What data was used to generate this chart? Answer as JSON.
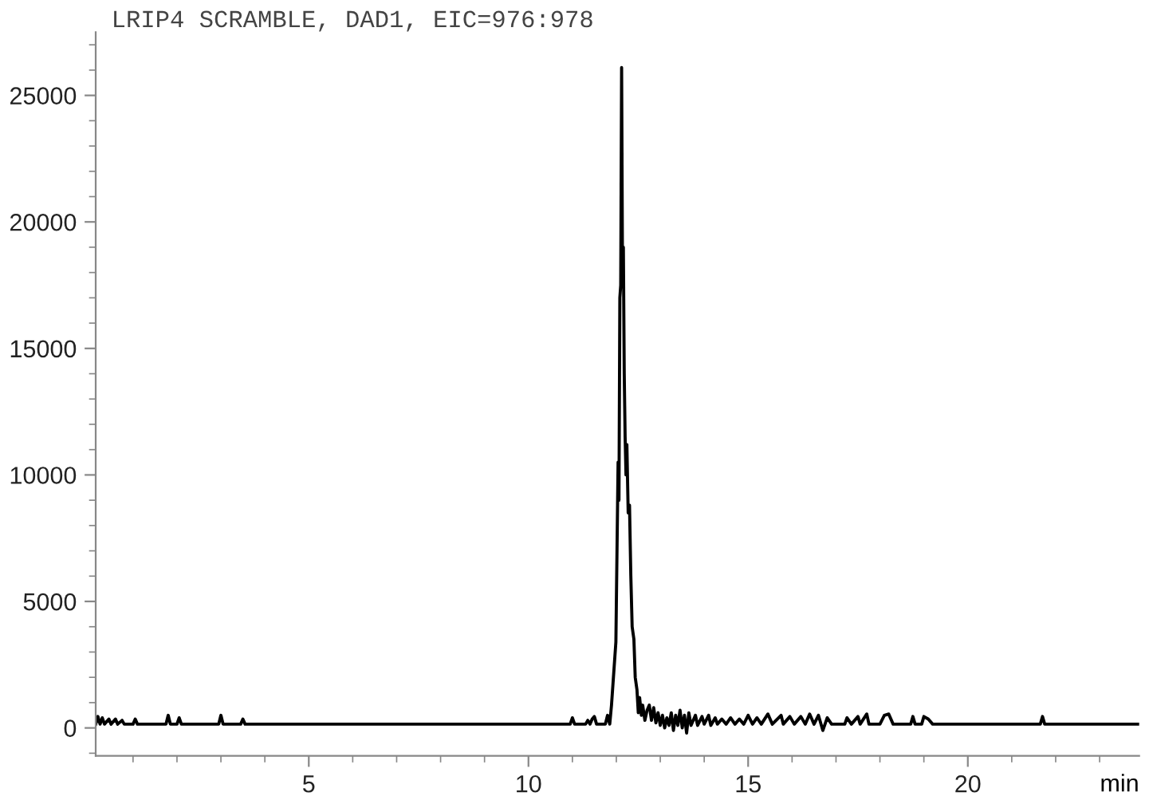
{
  "chart_data": {
    "type": "line",
    "title": "LRIP4 SCRAMBLE, DAD1, EIC=976:978",
    "xlabel": "min",
    "x": [
      0.15,
      0.2,
      0.25,
      0.3,
      0.35,
      0.45,
      0.5,
      0.6,
      0.65,
      0.75,
      0.8,
      1.0,
      1.05,
      1.1,
      1.75,
      1.8,
      1.85,
      2.0,
      2.05,
      2.1,
      2.95,
      3.0,
      3.05,
      3.45,
      3.5,
      3.55,
      10.95,
      11.0,
      11.05,
      11.3,
      11.35,
      11.4,
      11.45,
      11.5,
      11.55,
      11.75,
      11.8,
      11.85,
      11.89,
      11.99,
      12.04,
      12.06,
      12.08,
      12.1,
      12.12,
      12.14,
      12.16,
      12.18,
      12.2,
      12.22,
      12.24,
      12.27,
      12.3,
      12.33,
      12.36,
      12.4,
      12.43,
      12.47,
      12.5,
      12.53,
      12.57,
      12.6,
      12.65,
      12.7,
      12.75,
      12.8,
      12.85,
      12.9,
      12.95,
      13.0,
      13.05,
      13.1,
      13.15,
      13.2,
      13.25,
      13.3,
      13.35,
      13.4,
      13.45,
      13.5,
      13.55,
      13.6,
      13.65,
      13.7,
      13.8,
      13.85,
      13.95,
      14.0,
      14.1,
      14.15,
      14.25,
      14.3,
      14.4,
      14.5,
      14.6,
      14.7,
      14.8,
      14.9,
      15.0,
      15.1,
      15.2,
      15.3,
      15.45,
      15.55,
      15.75,
      15.8,
      15.95,
      16.05,
      16.2,
      16.3,
      16.4,
      16.5,
      16.6,
      16.7,
      16.8,
      16.9,
      17.2,
      17.25,
      17.35,
      17.5,
      17.55,
      17.7,
      17.75,
      18.0,
      18.1,
      18.2,
      18.3,
      18.7,
      18.75,
      18.8,
      18.95,
      19.0,
      19.1,
      19.2,
      21.65,
      21.7,
      21.75,
      23.9
    ],
    "series": [
      {
        "color": "#000000",
        "values": [
          150,
          450,
          150,
          400,
          150,
          350,
          150,
          350,
          150,
          300,
          150,
          150,
          350,
          150,
          150,
          500,
          150,
          150,
          400,
          150,
          150,
          500,
          150,
          150,
          350,
          150,
          150,
          400,
          150,
          150,
          300,
          150,
          350,
          450,
          150,
          150,
          500,
          150,
          900,
          3400,
          10500,
          9000,
          17000,
          17500,
          26100,
          18000,
          19000,
          14000,
          11500,
          10000,
          11200,
          8500,
          8800,
          6000,
          4000,
          3500,
          2000,
          1500,
          600,
          1200,
          500,
          900,
          300,
          700,
          900,
          300,
          800,
          200,
          600,
          100,
          500,
          0,
          400,
          100,
          600,
          -100,
          500,
          100,
          700,
          0,
          500,
          -200,
          600,
          100,
          500,
          100,
          450,
          150,
          500,
          100,
          400,
          150,
          350,
          150,
          400,
          150,
          350,
          150,
          500,
          150,
          400,
          150,
          550,
          150,
          500,
          150,
          450,
          150,
          450,
          150,
          550,
          150,
          500,
          -100,
          400,
          150,
          150,
          400,
          150,
          450,
          150,
          550,
          150,
          150,
          500,
          550,
          150,
          150,
          450,
          150,
          150,
          450,
          350,
          150,
          150,
          450,
          150,
          150
        ]
      }
    ],
    "xlim": [
      0.15,
      23.9
    ],
    "ylim": [
      -1100,
      27500
    ],
    "xticks": [
      {
        "value": 1,
        "label": null
      },
      {
        "value": 2,
        "label": null
      },
      {
        "value": 3,
        "label": null
      },
      {
        "value": 4,
        "label": null
      },
      5,
      {
        "value": 6,
        "label": null
      },
      {
        "value": 7,
        "label": null
      },
      {
        "value": 8,
        "label": null
      },
      {
        "value": 9,
        "label": null
      },
      10,
      {
        "value": 11,
        "label": null
      },
      {
        "value": 12,
        "label": null
      },
      {
        "value": 13,
        "label": null
      },
      {
        "value": 14,
        "label": null
      },
      15,
      {
        "value": 16,
        "label": null
      },
      {
        "value": 17,
        "label": null
      },
      {
        "value": 18,
        "label": null
      },
      {
        "value": 19,
        "label": null
      },
      20,
      {
        "value": 21,
        "label": null
      },
      {
        "value": 22,
        "label": null
      },
      {
        "value": 23,
        "label": null
      }
    ],
    "yticks": [
      {
        "value": -1000,
        "label": null
      },
      0,
      {
        "value": 1000,
        "label": null
      },
      {
        "value": 2000,
        "label": null
      },
      {
        "value": 3000,
        "label": null
      },
      {
        "value": 4000,
        "label": null
      },
      5000,
      {
        "value": 6000,
        "label": null
      },
      {
        "value": 7000,
        "label": null
      },
      {
        "value": 8000,
        "label": null
      },
      {
        "value": 9000,
        "label": null
      },
      10000,
      {
        "value": 11000,
        "label": null
      },
      {
        "value": 12000,
        "label": null
      },
      {
        "value": 13000,
        "label": null
      },
      {
        "value": 14000,
        "label": null
      },
      15000,
      {
        "value": 16000,
        "label": null
      },
      {
        "value": 17000,
        "label": null
      },
      {
        "value": 18000,
        "label": null
      },
      {
        "value": 19000,
        "label": null
      },
      20000,
      {
        "value": 21000,
        "label": null
      },
      {
        "value": 22000,
        "label": null
      },
      {
        "value": 23000,
        "label": null
      },
      {
        "value": 24000,
        "label": null
      },
      25000,
      {
        "value": 26000,
        "label": null
      },
      {
        "value": 27000,
        "label": null
      }
    ],
    "grid": false,
    "legend": false,
    "marker": "none",
    "line_style": "solid"
  }
}
